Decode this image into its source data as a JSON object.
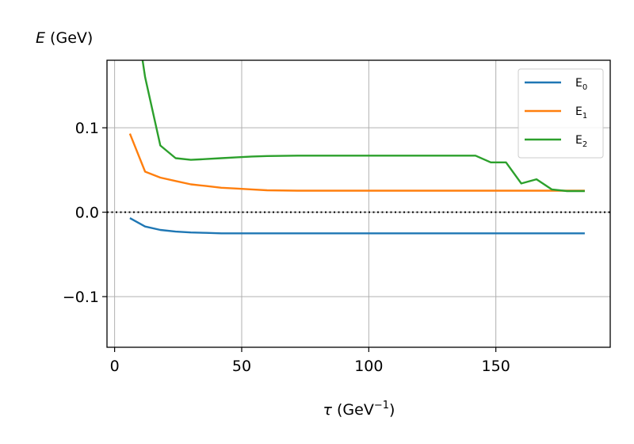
{
  "chart_data": {
    "type": "line",
    "ylabel_var": "E",
    "ylabel_unit": " (GeV)",
    "xlabel_var": "τ",
    "xlabel_unit": " (GeV",
    "xlabel_exp": "−1",
    "xlabel_close": ")",
    "xlim": [
      -3,
      195
    ],
    "ylim": [
      -0.16,
      0.18
    ],
    "xticks": [
      0,
      50,
      100,
      150
    ],
    "xtick_labels": [
      "0",
      "50",
      "100",
      "150"
    ],
    "yticks": [
      -0.1,
      0.0,
      0.1
    ],
    "ytick_labels": [
      "−0.1",
      "0.0",
      "0.1"
    ],
    "grid": true,
    "legend_position": "top-right",
    "reference_line": {
      "y": 0.0,
      "style": "dotted",
      "color": "#000000"
    },
    "series": [
      {
        "name": "E",
        "subscript": "0",
        "color": "#1f77b4",
        "x": [
          6,
          12,
          18,
          24,
          30,
          36,
          42,
          48,
          54,
          60,
          72,
          90,
          110,
          130,
          150,
          170,
          185
        ],
        "y": [
          -0.007,
          -0.017,
          -0.021,
          -0.023,
          -0.024,
          -0.0245,
          -0.025,
          -0.025,
          -0.025,
          -0.025,
          -0.025,
          -0.025,
          -0.025,
          -0.025,
          -0.025,
          -0.025,
          -0.025
        ]
      },
      {
        "name": "E",
        "subscript": "1",
        "color": "#ff7f0e",
        "x": [
          6,
          12,
          18,
          24,
          30,
          36,
          42,
          48,
          54,
          60,
          72,
          90,
          110,
          130,
          150,
          170,
          185
        ],
        "y": [
          0.093,
          0.048,
          0.041,
          0.037,
          0.033,
          0.031,
          0.029,
          0.028,
          0.027,
          0.026,
          0.0255,
          0.0255,
          0.0255,
          0.0255,
          0.0255,
          0.0255,
          0.0255
        ]
      },
      {
        "name": "E",
        "subscript": "2",
        "color": "#2ca02c",
        "x": [
          11,
          12,
          18,
          24,
          30,
          36,
          42,
          48,
          54,
          60,
          72,
          90,
          110,
          130,
          142,
          148,
          154,
          160,
          166,
          172,
          178,
          185
        ],
        "y": [
          0.18,
          0.16,
          0.079,
          0.064,
          0.062,
          0.063,
          0.064,
          0.065,
          0.066,
          0.0665,
          0.067,
          0.067,
          0.067,
          0.067,
          0.067,
          0.059,
          0.059,
          0.034,
          0.039,
          0.027,
          0.025,
          0.025
        ]
      }
    ]
  }
}
